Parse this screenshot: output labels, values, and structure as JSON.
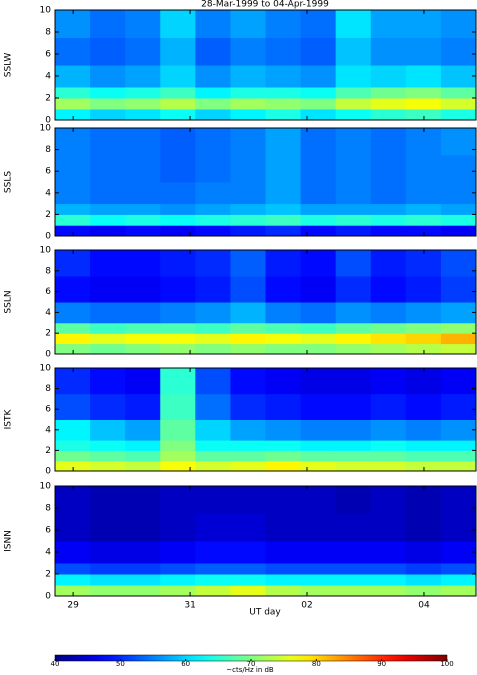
{
  "chart_data": {
    "type": "heatmap",
    "title": "28-Mar-1999 to 04-Apr-1999",
    "xlabel": "UT day",
    "xlim": [
      0.69,
      7.89
    ],
    "xticks": [
      {
        "value": 1,
        "label": "29"
      },
      {
        "value": 3,
        "label": "31"
      },
      {
        "value": 5,
        "label": "02"
      },
      {
        "value": 7,
        "label": "04"
      }
    ],
    "ylim": [
      0,
      10
    ],
    "yticks": [
      0,
      2,
      4,
      6,
      8,
      10
    ],
    "x_edges": [
      0.69,
      1.29,
      1.89,
      2.49,
      3.09,
      3.69,
      4.29,
      4.89,
      5.49,
      6.09,
      6.69,
      7.29,
      7.89
    ],
    "y_edges": [
      0,
      1,
      2,
      3,
      5,
      7.5,
      10
    ],
    "clim": [
      40,
      100
    ],
    "colormap": "jet",
    "colorbar_ticks": [
      40,
      50,
      60,
      70,
      80,
      90,
      100
    ],
    "colorbar_label": "~cts/Hz in dB",
    "panels": [
      {
        "name": "SSLW",
        "values": [
          [
            62,
            60,
            61,
            63,
            60,
            62,
            64,
            61,
            63,
            65,
            66,
            64
          ],
          [
            72,
            70,
            71,
            73,
            70,
            72,
            71,
            70,
            74,
            76,
            77,
            75
          ],
          [
            65,
            63,
            64,
            66,
            62,
            64,
            64,
            63,
            67,
            69,
            70,
            68
          ],
          [
            58,
            56,
            57,
            60,
            56,
            58,
            57,
            56,
            61,
            60,
            61,
            59
          ],
          [
            54,
            53,
            54,
            58,
            53,
            55,
            54,
            53,
            59,
            56,
            56,
            55
          ],
          [
            56,
            54,
            55,
            60,
            55,
            57,
            55,
            54,
            61,
            57,
            57,
            56
          ]
        ]
      },
      {
        "name": "SSLS",
        "values": [
          [
            48,
            47,
            48,
            47,
            48,
            49,
            50,
            48,
            49,
            48,
            48,
            47
          ],
          [
            65,
            63,
            64,
            63,
            64,
            65,
            66,
            64,
            65,
            64,
            65,
            64
          ],
          [
            58,
            57,
            57,
            56,
            57,
            58,
            59,
            57,
            57,
            57,
            58,
            57
          ],
          [
            55,
            54,
            54,
            54,
            55,
            55,
            57,
            54,
            55,
            54,
            55,
            55
          ],
          [
            55,
            54,
            54,
            53,
            54,
            55,
            57,
            54,
            55,
            54,
            55,
            55
          ],
          [
            55,
            54,
            54,
            53,
            54,
            55,
            57,
            54,
            55,
            54,
            55,
            56
          ]
        ]
      },
      {
        "name": "SSLN",
        "values": [
          [
            70,
            69,
            70,
            71,
            70,
            71,
            70,
            70,
            71,
            72,
            73,
            74
          ],
          [
            78,
            76,
            77,
            77,
            76,
            78,
            77,
            76,
            78,
            79,
            80,
            82
          ],
          [
            68,
            66,
            67,
            67,
            66,
            68,
            67,
            66,
            68,
            69,
            70,
            71
          ],
          [
            55,
            54,
            54,
            55,
            56,
            58,
            55,
            54,
            56,
            55,
            56,
            57
          ],
          [
            48,
            47,
            47,
            48,
            49,
            52,
            48,
            47,
            50,
            48,
            49,
            51
          ],
          [
            50,
            48,
            48,
            49,
            50,
            53,
            49,
            48,
            52,
            49,
            50,
            52
          ]
        ]
      },
      {
        "name": "ISTK",
        "values": [
          [
            76,
            75,
            74,
            77,
            75,
            76,
            78,
            76,
            75,
            75,
            74,
            74
          ],
          [
            69,
            68,
            67,
            72,
            68,
            68,
            69,
            68,
            68,
            68,
            67,
            67
          ],
          [
            64,
            63,
            62,
            70,
            63,
            63,
            63,
            62,
            62,
            63,
            62,
            62
          ],
          [
            62,
            59,
            57,
            68,
            60,
            57,
            56,
            55,
            55,
            56,
            55,
            56
          ],
          [
            52,
            50,
            49,
            66,
            54,
            50,
            49,
            48,
            48,
            49,
            48,
            49
          ],
          [
            50,
            48,
            47,
            65,
            52,
            48,
            47,
            46,
            46,
            47,
            46,
            47
          ]
        ]
      },
      {
        "name": "ISNN",
        "values": [
          [
            72,
            71,
            71,
            72,
            74,
            76,
            73,
            72,
            72,
            72,
            71,
            72
          ],
          [
            62,
            61,
            61,
            62,
            63,
            63,
            62,
            62,
            62,
            62,
            61,
            62
          ],
          [
            52,
            51,
            51,
            52,
            53,
            53,
            52,
            52,
            52,
            52,
            51,
            52
          ],
          [
            47,
            46,
            46,
            47,
            48,
            48,
            47,
            47,
            47,
            47,
            46,
            47
          ],
          [
            44,
            43,
            43,
            44,
            45,
            45,
            44,
            44,
            44,
            44,
            43,
            44
          ],
          [
            44,
            43,
            43,
            44,
            44,
            44,
            44,
            44,
            43,
            44,
            43,
            44
          ]
        ]
      }
    ]
  }
}
